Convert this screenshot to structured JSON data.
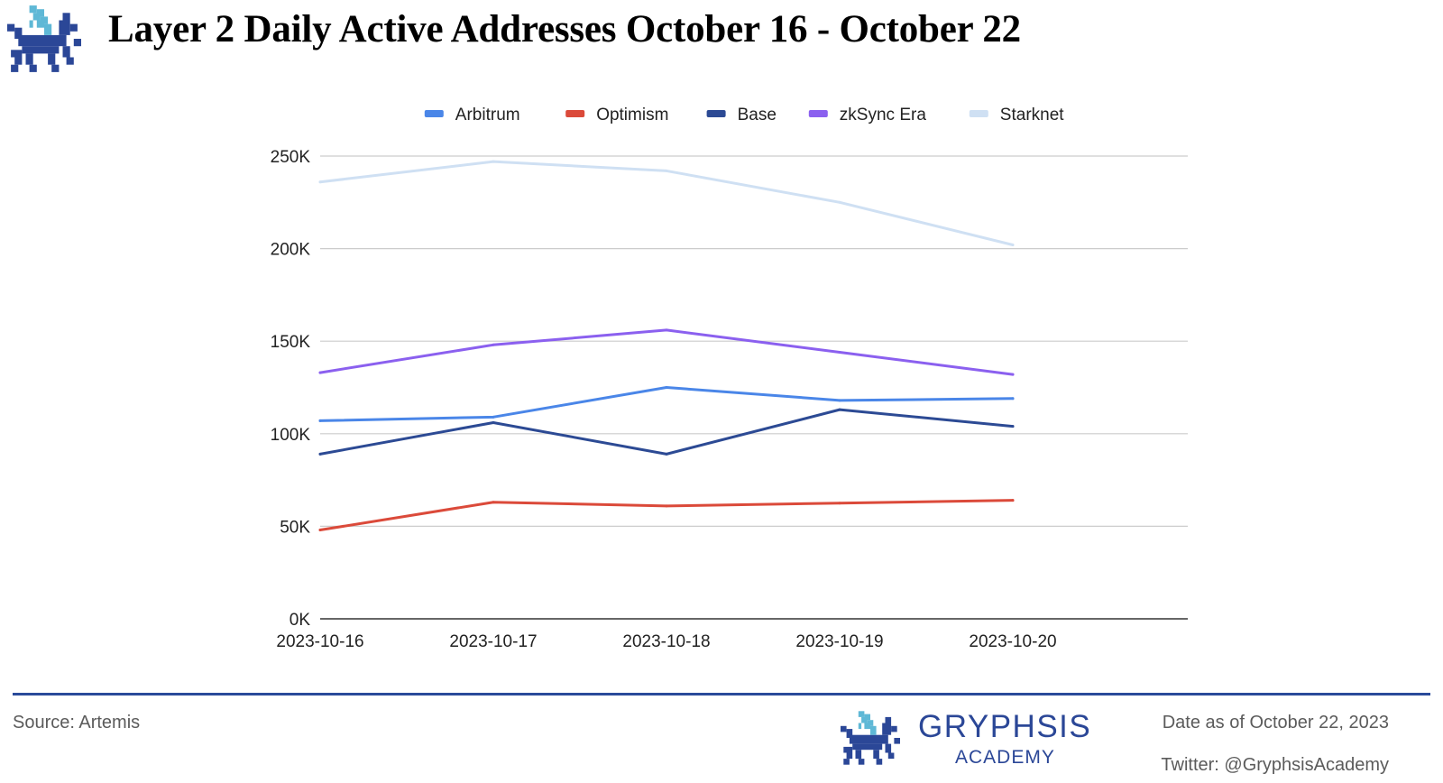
{
  "header": {
    "title": "Layer 2 Daily Active Addresses October 16 - October 22"
  },
  "chart_data": {
    "type": "line",
    "title": "Layer 2 Daily Active Addresses October 16 - October 22",
    "xlabel": "",
    "ylabel": "",
    "categories": [
      "2023-10-16",
      "2023-10-17",
      "2023-10-18",
      "2023-10-19",
      "2023-10-20"
    ],
    "ylim": [
      0,
      250000
    ],
    "yticks": [
      0,
      50000,
      100000,
      150000,
      200000,
      250000
    ],
    "ytick_labels": [
      "0K",
      "50K",
      "100K",
      "150K",
      "200K",
      "250K"
    ],
    "grid": true,
    "legend_position": "top",
    "series": [
      {
        "name": "Arbitrum",
        "color": "#4a86e8",
        "values": [
          107000,
          109000,
          125000,
          118000,
          119000
        ]
      },
      {
        "name": "Optimism",
        "color": "#db4a3a",
        "values": [
          48000,
          63000,
          61000,
          62500,
          64000
        ]
      },
      {
        "name": "Base",
        "color": "#2c4a94",
        "values": [
          89000,
          106000,
          89000,
          113000,
          104000
        ]
      },
      {
        "name": "zkSync Era",
        "color": "#8b60ef",
        "values": [
          133000,
          148000,
          156000,
          144000,
          132000
        ]
      },
      {
        "name": "Starknet",
        "color": "#cfe0f3",
        "values": [
          236000,
          247000,
          242000,
          225000,
          202000
        ]
      }
    ]
  },
  "footer": {
    "source": "Source: Artemis",
    "brand": "GRYPHSIS",
    "brand_sub": "ACADEMY",
    "date_as_of": "Date as of October 22, 2023",
    "twitter": "Twitter: @GryphsisAcademy"
  }
}
